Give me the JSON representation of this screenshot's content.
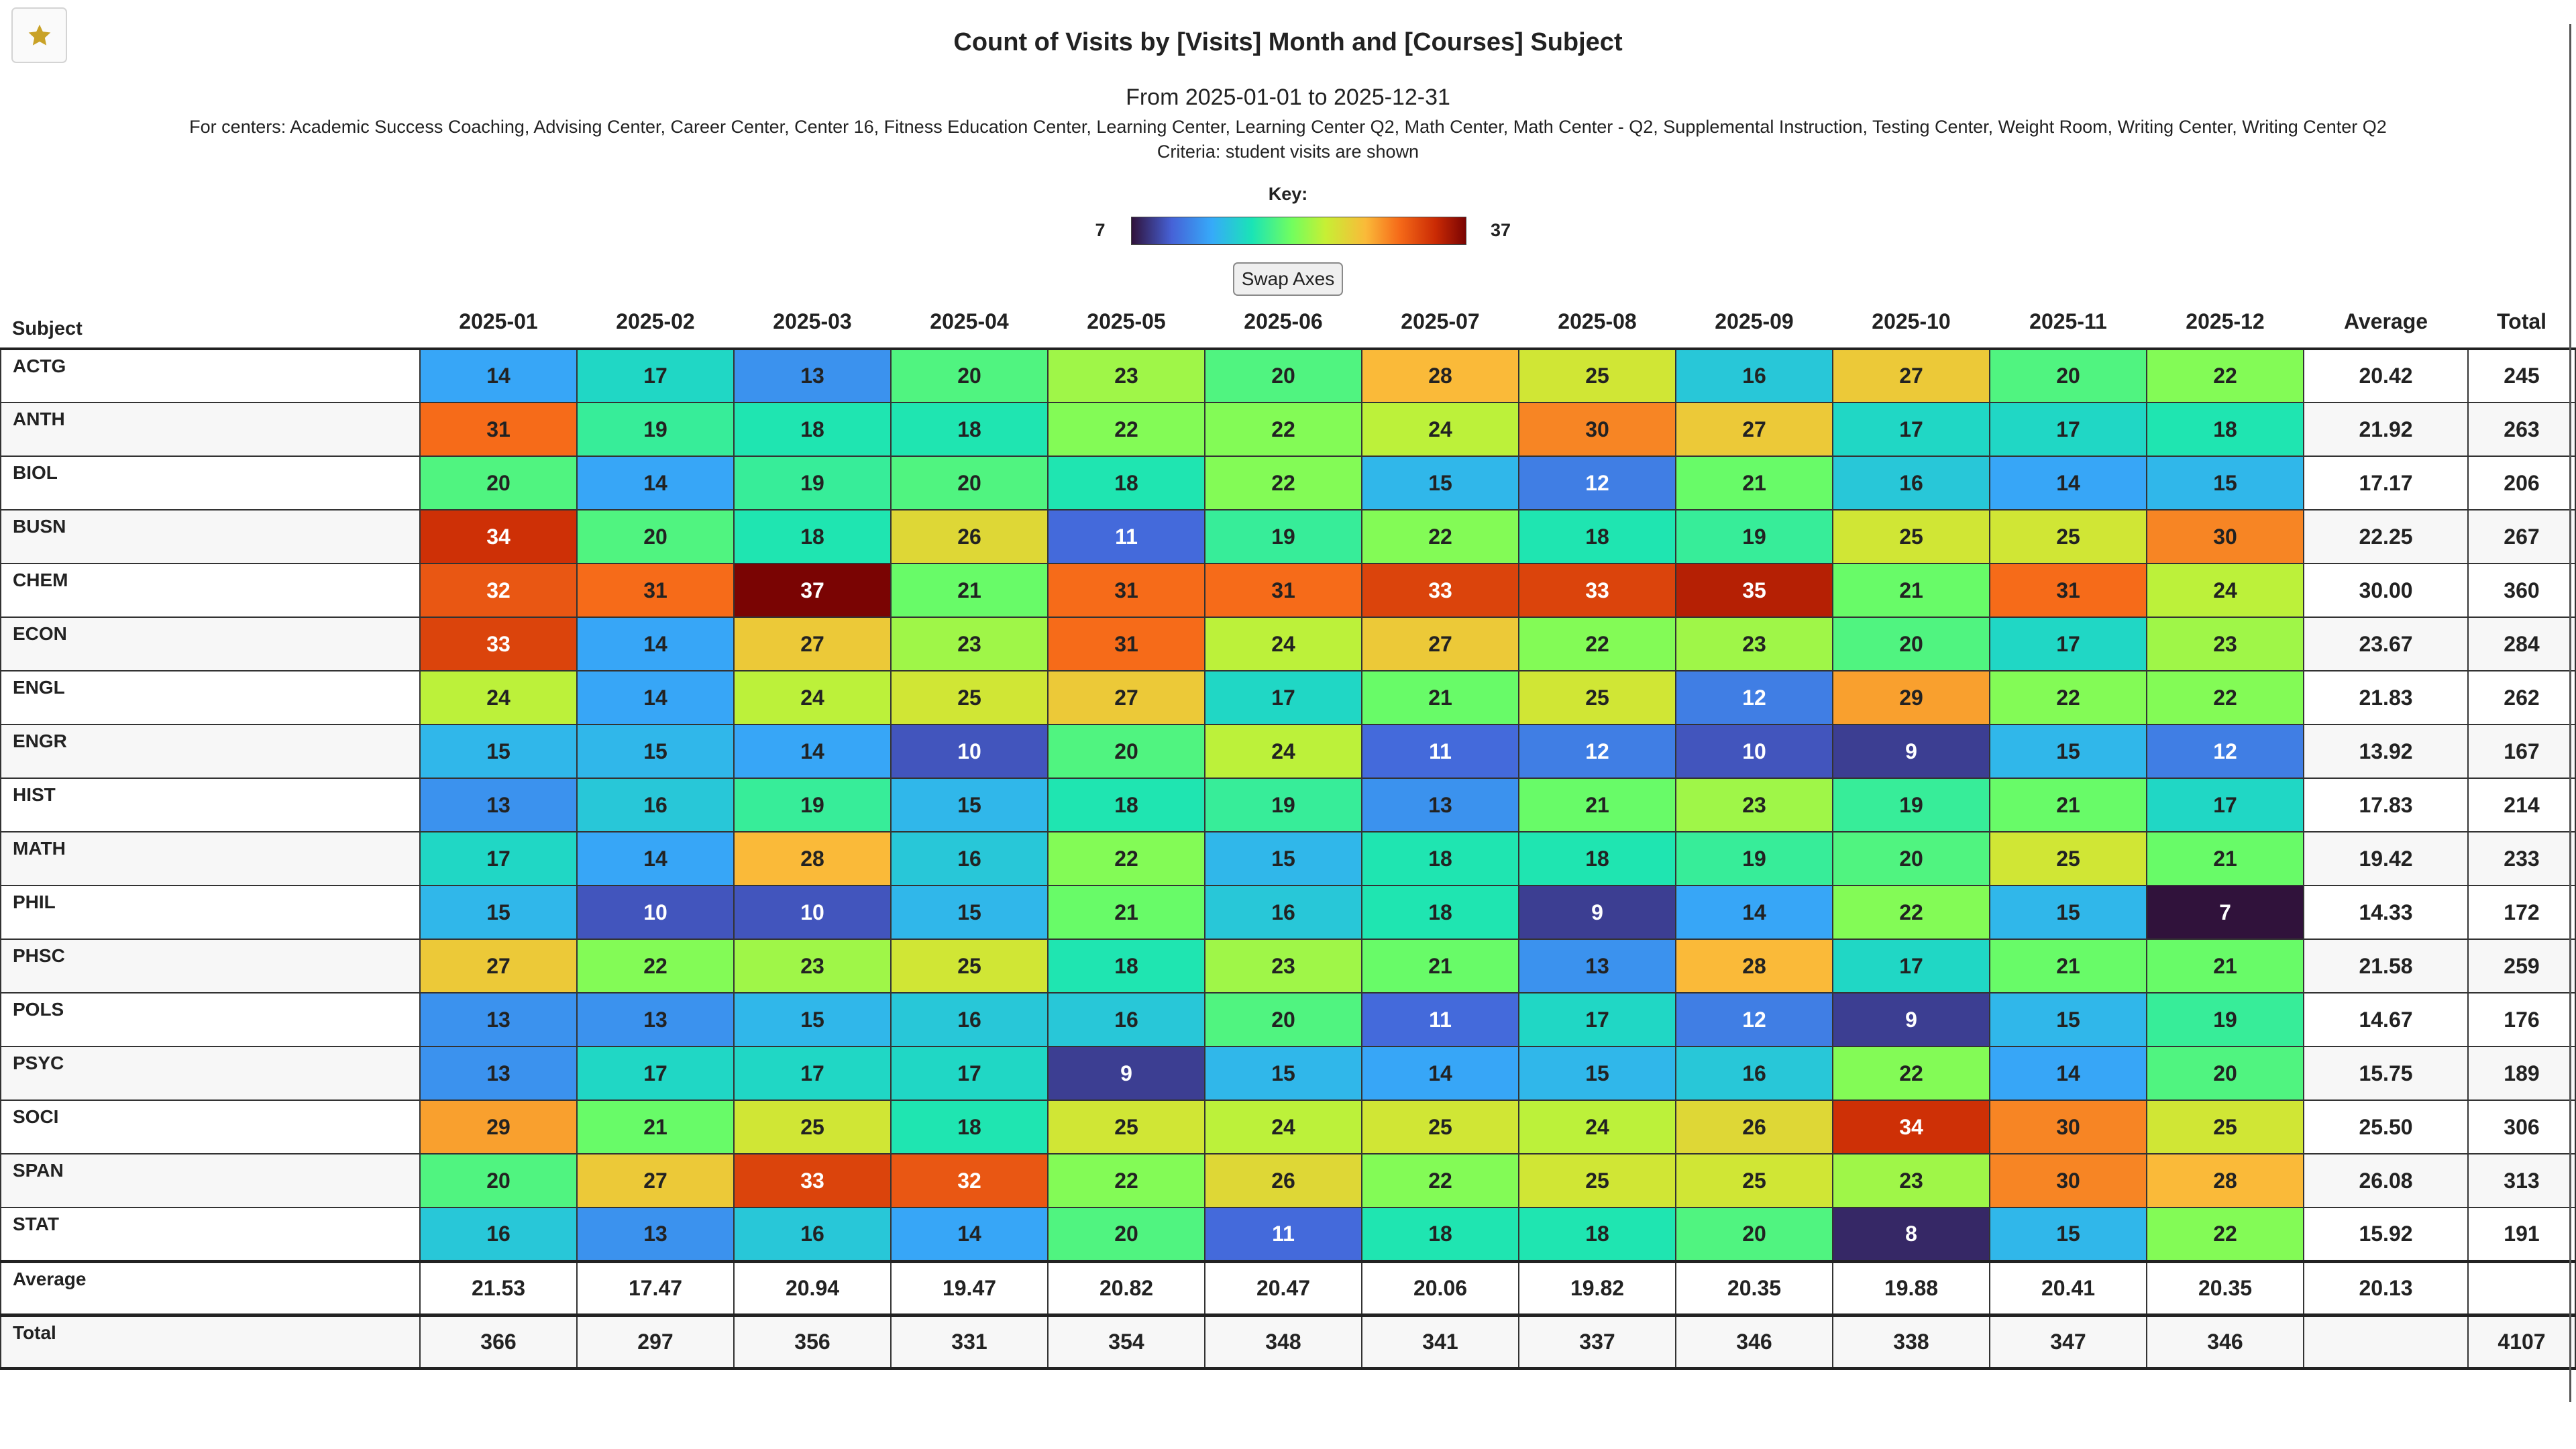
{
  "header": {
    "title": "Count of Visits by [Visits] Month and [Courses] Subject",
    "date_range": "From 2025-01-01 to 2025-12-31",
    "centers": "For centers: Academic Success Coaching, Advising Center, Career Center, Center 16, Fitness Education Center, Learning Center, Learning Center Q2, Math Center, Math Center - Q2, Supplemental Instruction, Testing Center, Weight Room, Writing Center, Writing Center Q2",
    "criteria": "Criteria: student visits are shown",
    "favorite_icon": "star-icon",
    "favorite_color": "#c9a227"
  },
  "key": {
    "label": "Key:",
    "min": "7",
    "max": "37"
  },
  "swap_axes_label": "Swap Axes",
  "table": {
    "subject_header": "Subject",
    "months": [
      "2025-01",
      "2025-02",
      "2025-03",
      "2025-04",
      "2025-05",
      "2025-06",
      "2025-07",
      "2025-08",
      "2025-09",
      "2025-10",
      "2025-11",
      "2025-12"
    ],
    "average_header": "Average",
    "total_header": "Total",
    "rows": [
      {
        "subject": "ACTG",
        "values": [
          14,
          17,
          13,
          20,
          23,
          20,
          28,
          25,
          16,
          27,
          20,
          22
        ],
        "average": "20.42",
        "total": "245"
      },
      {
        "subject": "ANTH",
        "values": [
          31,
          19,
          18,
          18,
          22,
          22,
          24,
          30,
          27,
          17,
          17,
          18
        ],
        "average": "21.92",
        "total": "263"
      },
      {
        "subject": "BIOL",
        "values": [
          20,
          14,
          19,
          20,
          18,
          22,
          15,
          12,
          21,
          16,
          14,
          15
        ],
        "average": "17.17",
        "total": "206"
      },
      {
        "subject": "BUSN",
        "values": [
          34,
          20,
          18,
          26,
          11,
          19,
          22,
          18,
          19,
          25,
          25,
          30
        ],
        "average": "22.25",
        "total": "267"
      },
      {
        "subject": "CHEM",
        "values": [
          32,
          31,
          37,
          21,
          31,
          31,
          33,
          33,
          35,
          21,
          31,
          24
        ],
        "average": "30.00",
        "total": "360"
      },
      {
        "subject": "ECON",
        "values": [
          33,
          14,
          27,
          23,
          31,
          24,
          27,
          22,
          23,
          20,
          17,
          23
        ],
        "average": "23.67",
        "total": "284"
      },
      {
        "subject": "ENGL",
        "values": [
          24,
          14,
          24,
          25,
          27,
          17,
          21,
          25,
          12,
          29,
          22,
          22
        ],
        "average": "21.83",
        "total": "262"
      },
      {
        "subject": "ENGR",
        "values": [
          15,
          15,
          14,
          10,
          20,
          24,
          11,
          12,
          10,
          9,
          15,
          12
        ],
        "average": "13.92",
        "total": "167"
      },
      {
        "subject": "HIST",
        "values": [
          13,
          16,
          19,
          15,
          18,
          19,
          13,
          21,
          23,
          19,
          21,
          17
        ],
        "average": "17.83",
        "total": "214"
      },
      {
        "subject": "MATH",
        "values": [
          17,
          14,
          28,
          16,
          22,
          15,
          18,
          18,
          19,
          20,
          25,
          21
        ],
        "average": "19.42",
        "total": "233"
      },
      {
        "subject": "PHIL",
        "values": [
          15,
          10,
          10,
          15,
          21,
          16,
          18,
          9,
          14,
          22,
          15,
          7
        ],
        "average": "14.33",
        "total": "172"
      },
      {
        "subject": "PHSC",
        "values": [
          27,
          22,
          23,
          25,
          18,
          23,
          21,
          13,
          28,
          17,
          21,
          21
        ],
        "average": "21.58",
        "total": "259"
      },
      {
        "subject": "POLS",
        "values": [
          13,
          13,
          15,
          16,
          16,
          20,
          11,
          17,
          12,
          9,
          15,
          19
        ],
        "average": "14.67",
        "total": "176"
      },
      {
        "subject": "PSYC",
        "values": [
          13,
          17,
          17,
          17,
          9,
          15,
          14,
          15,
          16,
          22,
          14,
          20
        ],
        "average": "15.75",
        "total": "189"
      },
      {
        "subject": "SOCI",
        "values": [
          29,
          21,
          25,
          18,
          25,
          24,
          25,
          24,
          26,
          34,
          30,
          25
        ],
        "average": "25.50",
        "total": "306"
      },
      {
        "subject": "SPAN",
        "values": [
          20,
          27,
          33,
          32,
          22,
          26,
          22,
          25,
          25,
          23,
          30,
          28
        ],
        "average": "26.08",
        "total": "313"
      },
      {
        "subject": "STAT",
        "values": [
          16,
          13,
          16,
          14,
          20,
          11,
          18,
          18,
          20,
          8,
          15,
          22
        ],
        "average": "15.92",
        "total": "191"
      }
    ],
    "average_row": {
      "label": "Average",
      "values": [
        "21.53",
        "17.47",
        "20.94",
        "19.47",
        "20.82",
        "20.47",
        "20.06",
        "19.82",
        "20.35",
        "19.88",
        "20.41",
        "20.35"
      ],
      "overall": "20.13"
    },
    "total_row": {
      "label": "Total",
      "values": [
        "366",
        "297",
        "356",
        "331",
        "354",
        "348",
        "341",
        "337",
        "346",
        "338",
        "347",
        "346"
      ],
      "grand_total": "4107"
    }
  }
}
